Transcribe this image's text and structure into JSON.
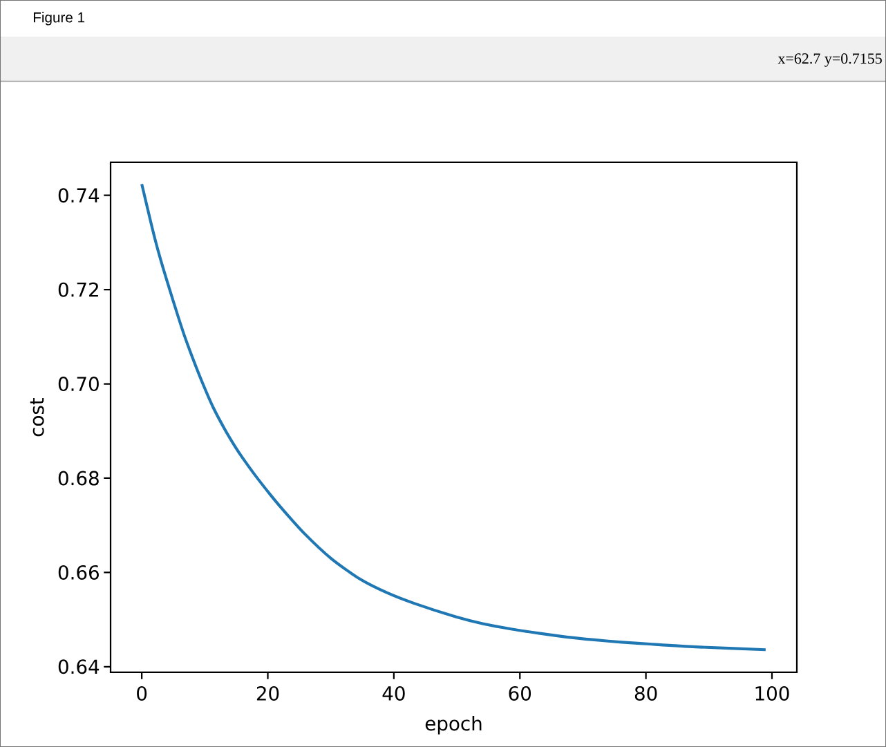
{
  "chart_data": {
    "type": "line",
    "xlabel": "epoch",
    "ylabel": "cost",
    "annotations": [
      "Figure 1",
      "x=62.7 y=0.7155"
    ],
    "x": [
      0,
      1.4,
      2.3,
      3.4,
      4.5,
      5.6,
      6.8,
      8.3,
      9.7,
      11.3,
      13.2,
      14.9,
      16.0,
      18.0,
      20.4,
      22.4,
      25.7,
      30.1,
      34.5,
      38.9,
      43.3,
      49.8,
      54.2,
      58.6,
      63.0,
      67.4,
      71.8,
      76.2,
      80.6,
      87.9,
      99
    ],
    "series": [
      {
        "color": "#1f77b4",
        "values": [
          0.7424,
          0.7345,
          0.7297,
          0.7245,
          0.7197,
          0.715,
          0.7101,
          0.7047,
          0.7,
          0.6951,
          0.6903,
          0.6865,
          0.6843,
          0.6806,
          0.6765,
          0.6733,
          0.6684,
          0.6629,
          0.6587,
          0.6557,
          0.6534,
          0.6506,
          0.6491,
          0.648,
          0.6471,
          0.6463,
          0.6457,
          0.6452,
          0.6448,
          0.6442,
          0.6436
        ]
      }
    ],
    "xlim": [
      -4.95,
      103.95
    ],
    "ylim": [
      0.6388,
      0.747
    ],
    "xticks": [
      0,
      20,
      40,
      60,
      80,
      100
    ],
    "yticks": [
      0.64,
      0.66,
      0.68,
      {
        "value": 0.7,
        "label": "0.70"
      },
      0.72,
      0.74
    ]
  }
}
